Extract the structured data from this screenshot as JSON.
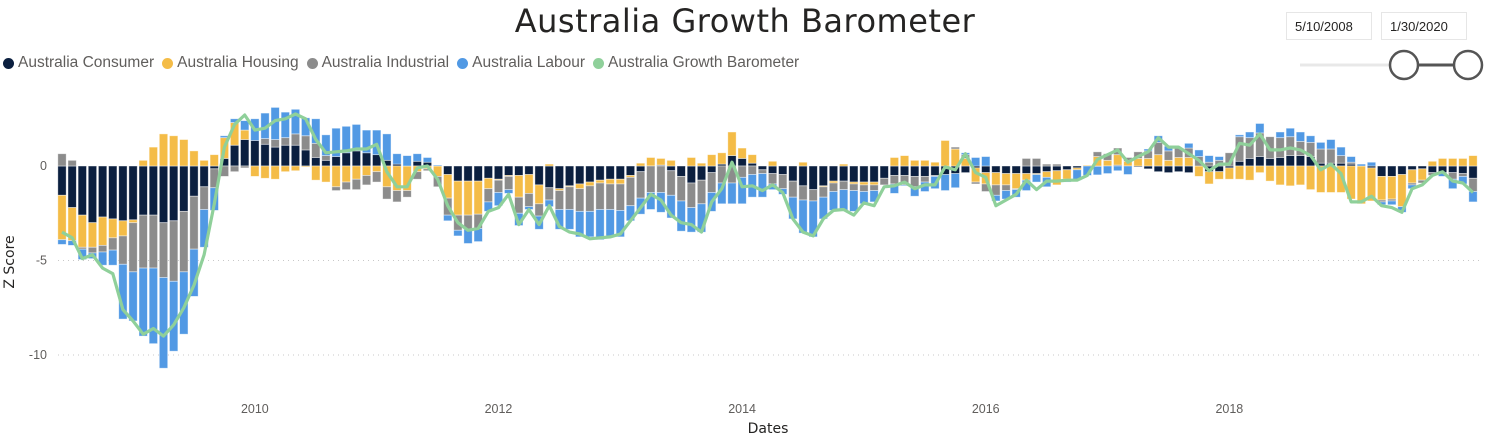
{
  "title": "Australia Growth Barometer",
  "date_range": {
    "start": "5/10/2008",
    "end": "1/30/2020",
    "slider_start_fraction": 0.62,
    "slider_end_fraction": 1.0
  },
  "colors": {
    "consumer": "#0b1f3f",
    "housing": "#f4bc47",
    "industrial": "#8c8c8c",
    "labour": "#5199e4",
    "barometer": "#8fd09a"
  },
  "chart_data": {
    "type": "bar",
    "stacked": true,
    "xlabel": "Dates",
    "ylabel": "Z Score",
    "ylim": [
      -11.5,
      3.5
    ],
    "yticks": [
      0,
      -5,
      -10
    ],
    "xticks": [
      "2010",
      "2012",
      "2014",
      "2016",
      "2018"
    ],
    "grid": "horizontal dotted",
    "legend": "top-left",
    "categories": [
      "2008-06",
      "2008-07",
      "2008-08",
      "2008-09",
      "2008-10",
      "2008-11",
      "2008-12",
      "2009-01",
      "2009-02",
      "2009-03",
      "2009-04",
      "2009-05",
      "2009-06",
      "2009-07",
      "2009-08",
      "2009-09",
      "2009-10",
      "2009-11",
      "2009-12",
      "2010-01",
      "2010-02",
      "2010-03",
      "2010-04",
      "2010-05",
      "2010-06",
      "2010-07",
      "2010-08",
      "2010-09",
      "2010-10",
      "2010-11",
      "2010-12",
      "2011-01",
      "2011-02",
      "2011-03",
      "2011-04",
      "2011-05",
      "2011-06",
      "2011-07",
      "2011-08",
      "2011-09",
      "2011-10",
      "2011-11",
      "2011-12",
      "2012-01",
      "2012-02",
      "2012-03",
      "2012-04",
      "2012-05",
      "2012-06",
      "2012-07",
      "2012-08",
      "2012-09",
      "2012-10",
      "2012-11",
      "2012-12",
      "2013-01",
      "2013-02",
      "2013-03",
      "2013-04",
      "2013-05",
      "2013-06",
      "2013-07",
      "2013-08",
      "2013-09",
      "2013-10",
      "2013-11",
      "2013-12",
      "2014-01",
      "2014-02",
      "2014-03",
      "2014-04",
      "2014-05",
      "2014-06",
      "2014-07",
      "2014-08",
      "2014-09",
      "2014-10",
      "2014-11",
      "2014-12",
      "2015-01",
      "2015-02",
      "2015-03",
      "2015-04",
      "2015-05",
      "2015-06",
      "2015-07",
      "2015-08",
      "2015-09",
      "2015-10",
      "2015-11",
      "2015-12",
      "2016-01",
      "2016-02",
      "2016-03",
      "2016-04",
      "2016-05",
      "2016-06",
      "2016-07",
      "2016-08",
      "2016-09",
      "2016-10",
      "2016-11",
      "2016-12",
      "2017-01",
      "2017-02",
      "2017-03",
      "2017-04",
      "2017-05",
      "2017-06",
      "2017-07",
      "2017-08",
      "2017-09",
      "2017-10",
      "2017-11",
      "2017-12",
      "2018-01",
      "2018-02",
      "2018-03",
      "2018-04",
      "2018-05",
      "2018-06",
      "2018-07",
      "2018-08",
      "2018-09",
      "2018-10",
      "2018-11",
      "2018-12",
      "2019-01",
      "2019-02",
      "2019-03",
      "2019-04",
      "2019-05",
      "2019-06",
      "2019-07",
      "2019-08",
      "2019-09",
      "2019-10",
      "2019-11",
      "2019-12",
      "2020-01"
    ],
    "series": [
      {
        "name": "Australia Consumer",
        "kind": "bar",
        "values": [
          -1.55,
          -2.2,
          -2.6,
          -3.0,
          -2.7,
          -2.8,
          -2.9,
          -2.85,
          -2.6,
          -2.6,
          -3.0,
          -2.9,
          -2.4,
          -1.6,
          -1.1,
          -0.15,
          0.4,
          1.1,
          1.4,
          1.35,
          1.15,
          1.0,
          1.1,
          1.1,
          0.85,
          0.45,
          0.3,
          0.5,
          0.7,
          0.8,
          0.7,
          0.6,
          0.3,
          0.1,
          0,
          0.25,
          0.2,
          0,
          -0.45,
          -0.8,
          -0.8,
          -0.8,
          -0.65,
          -0.7,
          -0.5,
          -0.5,
          -0.45,
          -1.0,
          -1.15,
          -1.2,
          -1.05,
          -0.95,
          -0.85,
          -0.75,
          -0.7,
          -0.7,
          -0.5,
          -0.3,
          0,
          0.05,
          -0.25,
          -0.55,
          -0.9,
          -0.75,
          -0.35,
          0.1,
          0.55,
          0.4,
          0.15,
          -0.2,
          -0.4,
          -0.45,
          -0.8,
          -1.05,
          -1.25,
          -1.05,
          -0.8,
          -0.8,
          -0.85,
          -0.85,
          -0.85,
          -0.65,
          -0.5,
          -0.5,
          -0.55,
          -0.55,
          -0.5,
          -0.45,
          -0.4,
          -0.35,
          -0.1,
          -0.35,
          -0.35,
          -0.4,
          -0.4,
          -0.4,
          -0.4,
          -0.3,
          -0.25,
          -0.2,
          -0.1,
          0,
          -0.02,
          0,
          0.05,
          0,
          -0.05,
          -0.15,
          -0.3,
          -0.35,
          -0.3,
          -0.35,
          0,
          -0.3,
          -0.3,
          -0.1,
          0.25,
          0.4,
          0.5,
          0.4,
          0.45,
          0.55,
          0.55,
          0.5,
          0.15,
          0.15,
          0.15,
          0.1,
          0,
          -0.1,
          -0.55,
          -0.55,
          -0.45,
          -0.2,
          -0.15,
          -0.35,
          -0.35,
          -0.35,
          -0.4,
          -0.65
        ]
      },
      {
        "name": "Australia Housing",
        "kind": "bar",
        "values": [
          -2.35,
          -1.75,
          -1.7,
          -1.3,
          -1.5,
          -1.0,
          -0.8,
          -0.15,
          0.3,
          1.0,
          1.7,
          1.6,
          1.4,
          0.8,
          0.3,
          0.6,
          1.1,
          1.2,
          0.5,
          -0.55,
          -0.65,
          -0.7,
          -0.3,
          -0.25,
          -0.05,
          -0.75,
          -0.85,
          -1.1,
          -0.85,
          -0.7,
          -0.5,
          -0.3,
          -1.1,
          -1.3,
          -1.3,
          -0.3,
          -0.15,
          -0.55,
          -1.25,
          -1.8,
          -1.8,
          -1.75,
          -0.55,
          -0.05,
          -0.05,
          -1.15,
          -1.0,
          -1.0,
          0.1,
          -0.1,
          -0.05,
          -0.25,
          -0.2,
          -0.15,
          -0.25,
          -0.25,
          -0.1,
          0.15,
          0.45,
          0.35,
          0.3,
          0,
          0.45,
          0.15,
          0.6,
          0.6,
          1.25,
          0.55,
          0.45,
          0,
          0.25,
          0,
          0,
          0.2,
          0,
          -0.05,
          -0.1,
          0.1,
          -0.1,
          -0.15,
          -0.15,
          0,
          0.45,
          0.55,
          0.3,
          0.3,
          0.2,
          1.35,
          0.9,
          0.4,
          -0.75,
          -0.6,
          -0.65,
          -0.6,
          -0.8,
          -0.35,
          -0.05,
          -0.3,
          -0.75,
          -0.5,
          -0.1,
          0.05,
          0.5,
          0.3,
          0.55,
          0.25,
          0.4,
          0.4,
          0.6,
          0.3,
          0.45,
          0.45,
          -0.55,
          -0.65,
          -0.4,
          -0.6,
          -0.7,
          -0.75,
          -0.35,
          -0.8,
          -1.0,
          -1.05,
          -1.0,
          -1.25,
          -1.4,
          -1.4,
          -1.4,
          -1.75,
          -2.0,
          -1.75,
          -1.25,
          -1.2,
          -1.7,
          -0.7,
          -0.6,
          0.25,
          0.4,
          0.4,
          0.4,
          0.55
        ]
      },
      {
        "name": "Australia Industrial",
        "kind": "bar",
        "values": [
          0.65,
          0.3,
          -0.1,
          -0.3,
          -0.35,
          -0.65,
          -1.5,
          -2.6,
          -2.8,
          -2.8,
          -2.9,
          -3.2,
          -3.2,
          -2.8,
          -1.2,
          -1.0,
          -0.55,
          -0.3,
          -0.1,
          0,
          0.3,
          0.4,
          0.4,
          0.6,
          0.75,
          0.75,
          0.25,
          -0.2,
          -0.4,
          -0.55,
          -0.5,
          -0.55,
          -0.65,
          -0.6,
          -0.35,
          -0.4,
          -0.1,
          -0.55,
          -0.9,
          -0.8,
          -0.75,
          -0.75,
          -0.7,
          -0.65,
          -0.7,
          -0.85,
          -0.7,
          -0.65,
          -0.65,
          -1.0,
          -1.2,
          -1.2,
          -1.35,
          -1.4,
          -1.35,
          -1.4,
          -1.5,
          -1.4,
          -1.4,
          -1.4,
          -1.3,
          -1.3,
          -1.3,
          -1.25,
          -1.05,
          -0.9,
          -0.9,
          -0.6,
          -0.45,
          -0.2,
          -0.55,
          -0.75,
          -0.85,
          -0.75,
          -0.6,
          -0.55,
          -0.45,
          -0.45,
          -0.35,
          -0.35,
          -0.3,
          -0.35,
          -0.45,
          -0.5,
          -0.55,
          -0.3,
          -0.05,
          0,
          0.1,
          0.2,
          -0.1,
          -0.4,
          -0.55,
          -0.3,
          -0.05,
          0.4,
          0.4,
          0.1,
          0.1,
          0,
          0,
          0,
          0.25,
          0.35,
          0.35,
          0.2,
          0.35,
          0.4,
          0.65,
          0.5,
          0.5,
          0.5,
          0.5,
          0.2,
          0.3,
          0.7,
          1.3,
          1.1,
          1.25,
          1.15,
          1.05,
          1.0,
          0.75,
          0.75,
          0.75,
          0.75,
          0.4,
          0.1,
          0,
          0,
          -0.1,
          -0.1,
          0,
          -0.1,
          -0.15,
          -0.15,
          0,
          -0.35,
          -0.15,
          -0.7
        ]
      },
      {
        "name": "Australia Labour",
        "kind": "bar",
        "values": [
          -0.25,
          -0.25,
          -0.55,
          -0.3,
          -0.7,
          -0.8,
          -2.9,
          -2.6,
          -3.6,
          -4.0,
          -4.8,
          -3.7,
          -3.3,
          -2.5,
          -2.0,
          -1.2,
          0.1,
          0.2,
          0.5,
          1.15,
          1.35,
          1.7,
          1.35,
          1.3,
          0.95,
          1.3,
          1.1,
          1.5,
          1.4,
          1.4,
          1.2,
          1.3,
          1.4,
          0.55,
          0.55,
          0.4,
          0.25,
          0.05,
          -0.3,
          -0.3,
          -0.75,
          -0.7,
          -0.5,
          -0.7,
          -0.2,
          -0.65,
          -0.15,
          -0.7,
          -0.35,
          -1.05,
          -1.05,
          -1.35,
          -1.35,
          -1.6,
          -1.4,
          -1.4,
          -0.8,
          -0.85,
          -0.9,
          -1.05,
          -1.2,
          -1.6,
          -1.3,
          -1.5,
          -1.0,
          -1.1,
          -1.1,
          -1.4,
          -1.2,
          -1.25,
          -0.3,
          -0.3,
          -1.15,
          -1.75,
          -1.9,
          -1.15,
          -1.0,
          -1.1,
          -1.1,
          -0.65,
          -0.6,
          0,
          -0.5,
          -0.05,
          -0.5,
          -0.5,
          -0.65,
          -0.85,
          -0.75,
          0.1,
          0.45,
          0.5,
          -0.3,
          -0.45,
          -0.4,
          -0.55,
          -0.4,
          -0.5,
          0,
          -0.15,
          -0.55,
          -0.5,
          -0.45,
          -0.4,
          -0.25,
          -0.45,
          0,
          0.1,
          0.35,
          0.25,
          0,
          0.25,
          0.35,
          0.35,
          0.2,
          0,
          0.1,
          0.3,
          0.5,
          0,
          0.3,
          0.45,
          0.5,
          0.35,
          0.35,
          0.5,
          0.45,
          0.3,
          0.1,
          0.2,
          -0.15,
          -0.2,
          -0.3,
          -0.2,
          0,
          0,
          -0.2,
          -0.5,
          -0.4,
          -0.55
        ]
      },
      {
        "name": "Australia Growth Barometer",
        "kind": "line",
        "values": [
          -3.5,
          -3.8,
          -4.9,
          -4.7,
          -5.4,
          -5.7,
          -7.6,
          -8.2,
          -8.9,
          -8.6,
          -9.0,
          -8.4,
          -7.5,
          -6.3,
          -4.7,
          -2.0,
          1.0,
          2.2,
          2.7,
          1.9,
          2.0,
          2.4,
          2.5,
          2.75,
          2.5,
          1.4,
          0.7,
          0.75,
          0.8,
          0.9,
          0.9,
          1.15,
          -0.3,
          -1.1,
          -1.1,
          -0.1,
          0,
          -0.7,
          -2.1,
          -3.0,
          -3.4,
          -3.3,
          -2.4,
          -2.2,
          -1.5,
          -3.1,
          -2.3,
          -3.1,
          -2.1,
          -3.2,
          -3.5,
          -3.6,
          -3.85,
          -3.8,
          -3.75,
          -3.6,
          -2.9,
          -2.2,
          -1.5,
          -1.8,
          -2.6,
          -3.0,
          -3.1,
          -3.5,
          -1.9,
          -1.2,
          0.2,
          -1.1,
          -1.05,
          -1.3,
          -1.0,
          -1.4,
          -2.8,
          -3.5,
          -3.7,
          -2.8,
          -2.35,
          -2.3,
          -2.6,
          -1.95,
          -2.1,
          -1.1,
          -1.05,
          -0.85,
          -1.2,
          -1.0,
          -1.0,
          -0.05,
          -0.2,
          0.65,
          -0.35,
          -0.6,
          -2.1,
          -1.8,
          -1.5,
          -0.75,
          -1.25,
          -0.8,
          -0.8,
          -0.75,
          -0.75,
          -0.5,
          0.35,
          0.6,
          0.85,
          0.2,
          0.5,
          0.75,
          1.5,
          1.0,
          1.0,
          0.65,
          0.3,
          -0.25,
          0.1,
          0.1,
          1.2,
          1.1,
          1.7,
          0.85,
          0.85,
          0.95,
          0.85,
          0.55,
          -0.2,
          0.1,
          -0.4,
          -1.9,
          -1.9,
          -1.6,
          -2.1,
          -2.2,
          -2.45,
          -1.2,
          -1.0,
          -0.5,
          -0.3,
          -0.8,
          -0.9,
          -1.4
        ]
      }
    ]
  }
}
